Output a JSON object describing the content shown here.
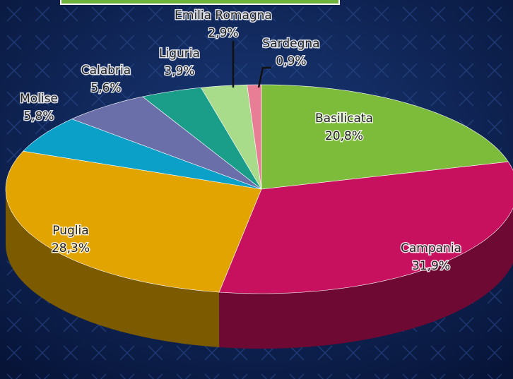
{
  "chart_data": {
    "type": "pie",
    "categories": [
      "Basilicata",
      "Campania",
      "Puglia",
      "Molise",
      "Calabria",
      "Liguria",
      "Emilia Romagna",
      "Sardegna"
    ],
    "values": [
      20.8,
      31.9,
      28.3,
      5.8,
      5.6,
      3.9,
      2.9,
      0.9
    ],
    "value_labels": [
      "20,8%",
      "31,9%",
      "28,3%",
      "5,8%",
      "5,6%",
      "3,9%",
      "2,9%",
      "0,9%"
    ],
    "colors": [
      "#7dbb3a",
      "#c8115e",
      "#e2a400",
      "#0aa0c8",
      "#6a6faa",
      "#1a9e8a",
      "#a8dc8a",
      "#e87d96"
    ]
  }
}
